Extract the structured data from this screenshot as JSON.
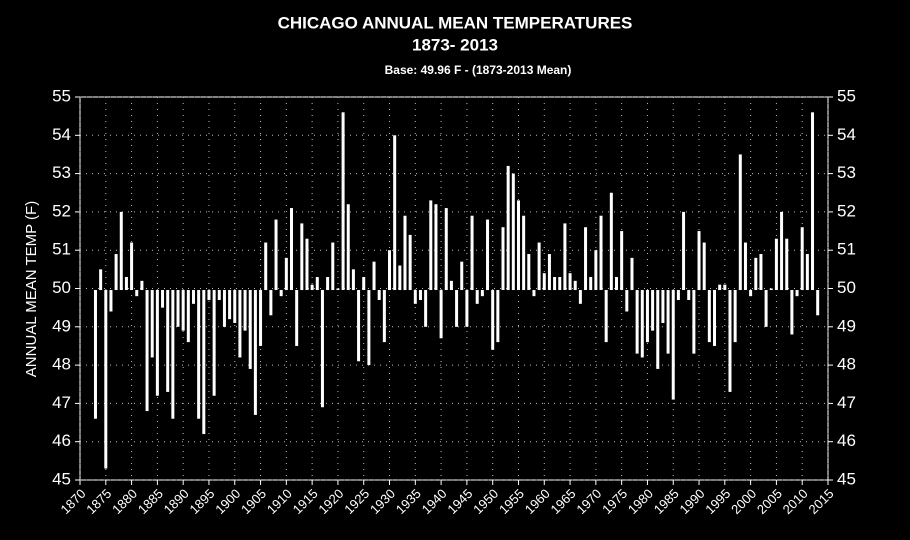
{
  "chart_data": {
    "type": "bar",
    "title": [
      "CHICAGO ANNUAL MEAN TEMPERATURES",
      "1873- 2013"
    ],
    "subtitle": "Base: 49.96 F -  (1873-2013 Mean)",
    "ylabel": "ANNUAL MEAN TEMP (F)",
    "base": 49.96,
    "color": "#ffffff",
    "background": "#000000",
    "grid": true,
    "x": [
      1873,
      1874,
      1875,
      1876,
      1877,
      1878,
      1879,
      1880,
      1881,
      1882,
      1883,
      1884,
      1885,
      1886,
      1887,
      1888,
      1889,
      1890,
      1891,
      1892,
      1893,
      1894,
      1895,
      1896,
      1897,
      1898,
      1899,
      1900,
      1901,
      1902,
      1903,
      1904,
      1905,
      1906,
      1907,
      1908,
      1909,
      1910,
      1911,
      1912,
      1913,
      1914,
      1915,
      1916,
      1917,
      1918,
      1919,
      1920,
      1921,
      1922,
      1923,
      1924,
      1925,
      1926,
      1927,
      1928,
      1929,
      1930,
      1931,
      1932,
      1933,
      1934,
      1935,
      1936,
      1937,
      1938,
      1939,
      1940,
      1941,
      1942,
      1943,
      1944,
      1945,
      1946,
      1947,
      1948,
      1949,
      1950,
      1951,
      1952,
      1953,
      1954,
      1955,
      1956,
      1957,
      1958,
      1959,
      1960,
      1961,
      1962,
      1963,
      1964,
      1965,
      1966,
      1967,
      1968,
      1969,
      1970,
      1971,
      1972,
      1973,
      1974,
      1975,
      1976,
      1977,
      1978,
      1979,
      1980,
      1981,
      1982,
      1983,
      1984,
      1985,
      1986,
      1987,
      1988,
      1989,
      1990,
      1991,
      1992,
      1993,
      1994,
      1995,
      1996,
      1997,
      1998,
      1999,
      2000,
      2001,
      2002,
      2003,
      2004,
      2005,
      2006,
      2007,
      2008,
      2009,
      2010,
      2011,
      2012,
      2013
    ],
    "values": [
      46.6,
      50.5,
      45.3,
      49.4,
      50.9,
      52.0,
      50.3,
      51.2,
      49.8,
      50.2,
      46.8,
      48.2,
      47.2,
      49.5,
      47.3,
      46.6,
      49.0,
      48.9,
      48.6,
      49.6,
      46.6,
      46.2,
      49.7,
      47.2,
      49.7,
      49.0,
      49.2,
      49.1,
      48.2,
      48.9,
      47.9,
      46.7,
      48.5,
      51.2,
      49.3,
      51.8,
      49.8,
      50.8,
      52.1,
      48.5,
      51.7,
      51.3,
      50.1,
      50.3,
      46.9,
      50.3,
      51.2,
      50.0,
      54.6,
      52.2,
      50.5,
      48.1,
      50.3,
      48.0,
      50.7,
      49.7,
      48.6,
      51.0,
      54.0,
      50.6,
      51.9,
      51.4,
      49.6,
      49.7,
      49.0,
      52.3,
      52.2,
      48.7,
      52.1,
      50.2,
      49.0,
      50.7,
      49.0,
      51.9,
      49.6,
      49.8,
      51.8,
      48.4,
      48.6,
      51.6,
      53.2,
      53.0,
      52.3,
      51.9,
      50.9,
      49.8,
      51.2,
      50.4,
      50.9,
      50.3,
      50.3,
      51.7,
      50.4,
      50.2,
      49.6,
      51.6,
      50.3,
      51.0,
      51.9,
      48.6,
      52.5,
      50.3,
      51.5,
      49.4,
      50.8,
      48.3,
      48.2,
      48.6,
      48.9,
      47.9,
      49.1,
      48.3,
      47.1,
      49.7,
      52.0,
      49.7,
      48.3,
      51.5,
      51.2,
      48.6,
      48.5,
      50.1,
      50.1,
      47.3,
      48.6,
      53.5,
      51.2,
      49.8,
      50.8,
      50.9,
      49.0,
      50.0,
      51.3,
      52.0,
      51.3,
      48.8,
      49.8,
      51.6,
      50.9,
      54.6,
      49.3
    ],
    "xlim": [
      1870,
      2015
    ],
    "xticks": [
      1870,
      1875,
      1880,
      1885,
      1890,
      1895,
      1900,
      1905,
      1910,
      1915,
      1920,
      1925,
      1930,
      1935,
      1940,
      1945,
      1950,
      1955,
      1960,
      1965,
      1970,
      1975,
      1980,
      1985,
      1990,
      1995,
      2000,
      2005,
      2010,
      2015
    ],
    "ylim": [
      45,
      55
    ],
    "yticks": [
      45,
      46,
      47,
      48,
      49,
      50,
      51,
      52,
      53,
      54,
      55
    ]
  }
}
